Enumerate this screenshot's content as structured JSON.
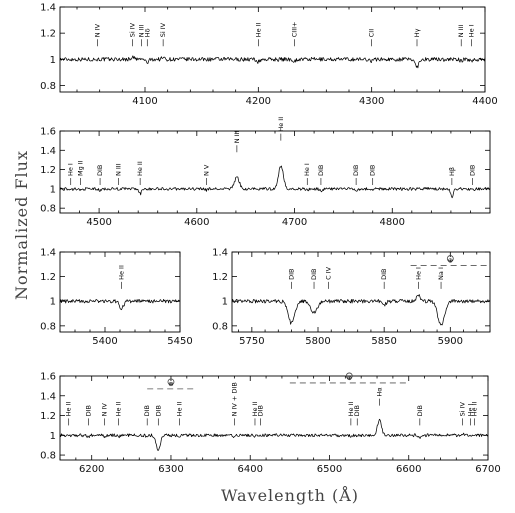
{
  "chart_data": {
    "type": "line",
    "xlabel": "Wavelength (Å)",
    "ylabel": "Normalized Flux",
    "panels": [
      {
        "id": "p1",
        "xlim": [
          4025,
          4400
        ],
        "ylim": [
          0.75,
          1.4
        ],
        "xticks": [
          4100,
          4200,
          4300,
          4400
        ],
        "yticks": [
          0.8,
          1,
          1.2,
          1.4
        ],
        "lines": [
          {
            "label": "N IV",
            "x": 4058,
            "y": 1.1,
            "sym": 0.0
          },
          {
            "label": "Si IV",
            "x": 4089,
            "y": 1.1,
            "sym": 0.4
          },
          {
            "label": "N III",
            "x": 4097,
            "y": 1.1,
            "sym": 0.0
          },
          {
            "label": "Hδ",
            "x": 4102,
            "y": 1.1,
            "sym": -0.6
          },
          {
            "label": "Si IV",
            "x": 4116,
            "y": 1.1,
            "sym": 0.3
          },
          {
            "label": "He II",
            "x": 4200,
            "y": 1.1,
            "sym": -0.5
          },
          {
            "label": "CIII+",
            "x": 4232,
            "y": 1.1,
            "sym": -0.3
          },
          {
            "label": "CII",
            "x": 4300,
            "y": 1.1,
            "sym": -0.3
          },
          {
            "label": "Hγ",
            "x": 4340,
            "y": 1.1,
            "sym": -1.5
          },
          {
            "label": "N III",
            "x": 4379,
            "y": 1.1,
            "sym": -0.3
          },
          {
            "label": "He I",
            "x": 4388,
            "y": 1.1,
            "sym": -0.3
          }
        ]
      },
      {
        "id": "p2",
        "xlim": [
          4460,
          4900
        ],
        "ylim": [
          0.75,
          1.6
        ],
        "xticks": [
          4500,
          4600,
          4700,
          4800
        ],
        "yticks": [
          0.8,
          1,
          1.2,
          1.4,
          1.6
        ],
        "lines": [
          {
            "label": "He I",
            "x": 4471,
            "y": 1.04,
            "sym": -0.4
          },
          {
            "label": "Mg II",
            "x": 4481,
            "y": 1.04,
            "sym": -0.3
          },
          {
            "label": "DIB",
            "x": 4501,
            "y": 1.04,
            "sym": -0.5
          },
          {
            "label": "N III",
            "x": 4520,
            "y": 1.04,
            "sym": 0.0
          },
          {
            "label": "He II",
            "x": 4542,
            "y": 1.04,
            "sym": -1.3
          },
          {
            "label": "N V",
            "x": 4610,
            "y": 1.04,
            "sym": -0.3
          },
          {
            "label": "N III",
            "x": 4641,
            "y": 1.38,
            "sym": 3.0
          },
          {
            "label": "He II",
            "x": 4686,
            "y": 1.5,
            "sym": 6.0
          },
          {
            "label": "He I",
            "x": 4713,
            "y": 1.04,
            "sym": -0.4
          },
          {
            "label": "DIB",
            "x": 4727,
            "y": 1.04,
            "sym": -0.5
          },
          {
            "label": "DIB",
            "x": 4763,
            "y": 1.04,
            "sym": -0.3
          },
          {
            "label": "DIB",
            "x": 4780,
            "y": 1.04,
            "sym": -0.3
          },
          {
            "label": "Hβ",
            "x": 4861,
            "y": 1.04,
            "sym": -2.0
          },
          {
            "label": "DIB",
            "x": 4882,
            "y": 1.04,
            "sym": -0.3
          }
        ]
      },
      {
        "id": "p3",
        "xlim": [
          5370,
          5450
        ],
        "ylim": [
          0.75,
          1.4
        ],
        "xticks": [
          5400,
          5450
        ],
        "yticks": [
          0.8,
          1,
          1.2,
          1.4
        ],
        "lines": [
          {
            "label": "He II",
            "x": 5411,
            "y": 1.1,
            "sym": -1.4
          }
        ]
      },
      {
        "id": "p4",
        "xlim": [
          5735,
          5930
        ],
        "ylim": [
          0.75,
          1.4
        ],
        "xticks": [
          5750,
          5800,
          5850,
          5900
        ],
        "yticks": [
          0.8,
          1,
          1.2,
          1.4
        ],
        "telluric": {
          "label": "⊕",
          "x": [
            5870,
            5930
          ],
          "y": 1.29
        },
        "lines": [
          {
            "label": "DIB",
            "x": 5780,
            "y": 1.1,
            "sym": -4.5
          },
          {
            "label": "DIB",
            "x": 5797,
            "y": 1.1,
            "sym": -2.4
          },
          {
            "label": "C IV",
            "x": 5808,
            "y": 1.1,
            "sym": 0.0
          },
          {
            "label": "DIB",
            "x": 5850,
            "y": 1.1,
            "sym": -0.8
          },
          {
            "label": "He I",
            "x": 5876,
            "y": 1.1,
            "sym": 1.1
          },
          {
            "label": "Na I",
            "x": 5893,
            "y": 1.1,
            "sym": -5.0
          }
        ]
      },
      {
        "id": "p5",
        "xlim": [
          6160,
          6700
        ],
        "ylim": [
          0.75,
          1.6
        ],
        "xticks": [
          6200,
          6300,
          6400,
          6500,
          6600,
          6700
        ],
        "yticks": [
          0.8,
          1,
          1.2,
          1.4,
          1.6
        ],
        "telluric": [
          {
            "label": "⊕",
            "x": [
              6270,
              6330
            ],
            "y": 1.47
          },
          {
            "label": "⊕",
            "x": [
              6450,
              6600
            ],
            "y": 1.53
          }
        ],
        "lines": [
          {
            "label": "He II",
            "x": 6171,
            "y": 1.1,
            "sym": -0.2
          },
          {
            "label": "DIB",
            "x": 6196,
            "y": 1.1,
            "sym": -0.4
          },
          {
            "label": "N IV",
            "x": 6216,
            "y": 1.1,
            "sym": -0.3
          },
          {
            "label": "He II",
            "x": 6234,
            "y": 1.1,
            "sym": -0.4
          },
          {
            "label": "DIB",
            "x": 6270,
            "y": 1.1,
            "sym": -0.5
          },
          {
            "label": "DIB",
            "x": 6284,
            "y": 1.1,
            "sym": -4.0
          },
          {
            "label": "He II",
            "x": 6311,
            "y": 1.1,
            "sym": -0.4
          },
          {
            "label": "N IV + DIB",
            "x": 6380,
            "y": 1.1,
            "sym": -0.5
          },
          {
            "label": "He II",
            "x": 6406,
            "y": 1.1,
            "sym": -0.3
          },
          {
            "label": "DIB",
            "x": 6413,
            "y": 1.1,
            "sym": -0.2
          },
          {
            "label": "He II",
            "x": 6527,
            "y": 1.1,
            "sym": -0.3
          },
          {
            "label": "DIB",
            "x": 6535,
            "y": 1.1,
            "sym": -0.2
          },
          {
            "label": "Hα",
            "x": 6563,
            "y": 1.3,
            "sym": 4.0
          },
          {
            "label": "DIB",
            "x": 6614,
            "y": 1.1,
            "sym": -0.7
          },
          {
            "label": "Si IV",
            "x": 6668,
            "y": 1.1,
            "sym": 0.5
          },
          {
            "label": "He I",
            "x": 6678,
            "y": 1.1,
            "sym": -0.3
          },
          {
            "label": "He II",
            "x": 6683,
            "y": 1.1,
            "sym": -0.3
          }
        ]
      }
    ]
  }
}
